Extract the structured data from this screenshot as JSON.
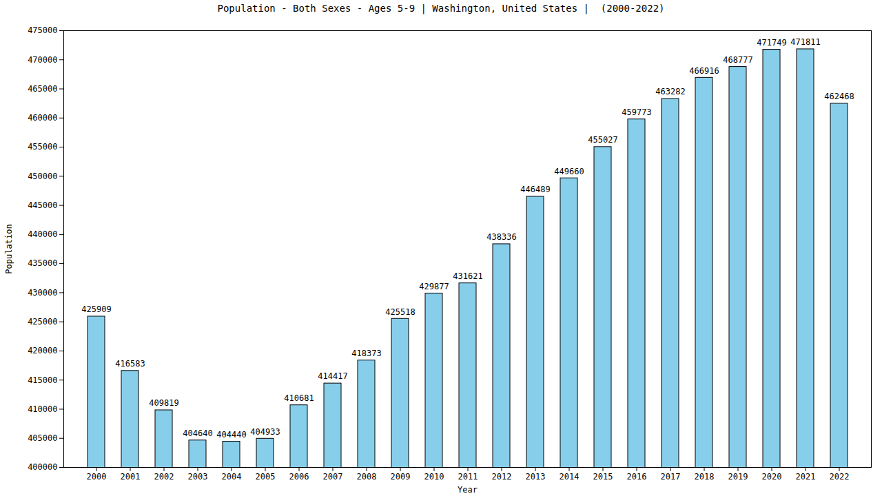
{
  "chart_data": {
    "type": "bar",
    "title": "Population - Both Sexes - Ages 5-9 | Washington, United States |  (2000-2022)",
    "x_label": "Year",
    "y_label": "Population",
    "categories": [
      "2000",
      "2001",
      "2002",
      "2003",
      "2004",
      "2005",
      "2006",
      "2007",
      "2008",
      "2009",
      "2010",
      "2011",
      "2012",
      "2013",
      "2014",
      "2015",
      "2016",
      "2017",
      "2018",
      "2019",
      "2020",
      "2021",
      "2022"
    ],
    "values": [
      425909,
      416583,
      409819,
      404640,
      404440,
      404933,
      410681,
      414417,
      418373,
      425518,
      429877,
      431621,
      438336,
      446489,
      449660,
      455027,
      459773,
      463282,
      466916,
      468777,
      471749,
      471811,
      462468
    ],
    "color": "#87ceeb",
    "ylim": [
      400000,
      475000
    ],
    "yticks": [
      400000,
      405000,
      410000,
      415000,
      420000,
      425000,
      430000,
      435000,
      440000,
      445000,
      450000,
      455000,
      460000,
      465000,
      470000,
      475000
    ],
    "grid": false,
    "data_labels": true
  }
}
